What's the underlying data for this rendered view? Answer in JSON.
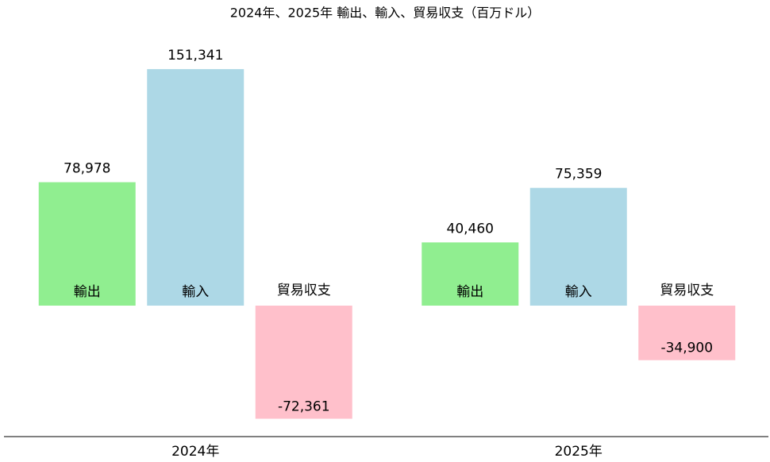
{
  "chart_data": {
    "type": "bar",
    "title": "2024年、2025年 輸出、輸入、貿易収支（百万ドル）",
    "categories": [
      "2024年",
      "2025年"
    ],
    "series": [
      {
        "name": "輸出",
        "color": "#90ee90",
        "values": [
          78978,
          40460
        ],
        "value_labels": [
          "78,978",
          "40,460"
        ]
      },
      {
        "name": "輸入",
        "color": "#add8e6",
        "values": [
          151341,
          75359
        ],
        "value_labels": [
          "151,341",
          "75,359"
        ]
      },
      {
        "name": "貿易収支",
        "color": "#ffc0cb",
        "values": [
          -72361,
          -34900
        ],
        "value_labels": [
          "-72,361",
          "-34,900"
        ]
      }
    ],
    "ylim": [
      -83800,
      159000
    ]
  }
}
